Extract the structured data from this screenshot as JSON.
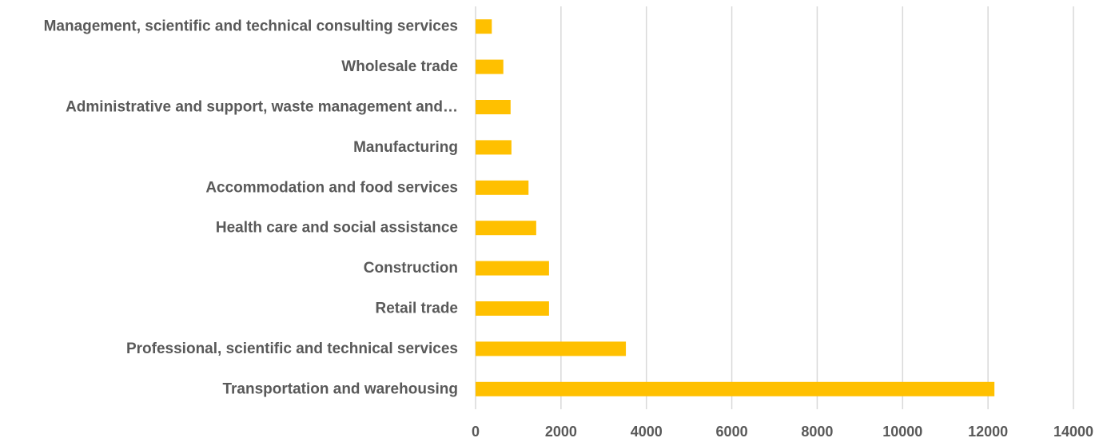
{
  "chart_data": {
    "type": "bar",
    "orientation": "horizontal",
    "title": "",
    "xlabel": "",
    "ylabel": "",
    "categories": [
      "Management, scientific and technical consulting services",
      "Wholesale trade",
      "Administrative and support, waste management and…",
      "Manufacturing",
      "Accommodation and food services",
      "Health care and social assistance",
      "Construction",
      "Retail trade",
      "Professional, scientific and technical services",
      "Transportation and warehousing"
    ],
    "values": [
      380,
      650,
      820,
      840,
      1240,
      1420,
      1720,
      1720,
      3520,
      12150
    ],
    "xlim": [
      0,
      14000
    ],
    "ticks": [
      0,
      2000,
      4000,
      6000,
      8000,
      10000,
      12000,
      14000
    ],
    "tick_labels": [
      "0",
      "2000",
      "4000",
      "6000",
      "8000",
      "10000",
      "12000",
      "14000"
    ],
    "grid": "vertical",
    "legend": "none",
    "bar_color": "#FFC000"
  }
}
